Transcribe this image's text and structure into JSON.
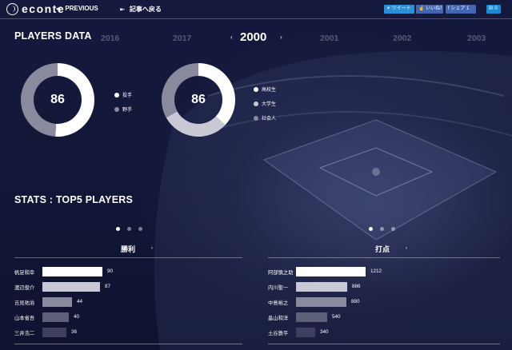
{
  "header": {
    "logo": "econte",
    "previous_label": "PREVIOUS",
    "back_label": "記事へ戻る",
    "share": {
      "tweet": "ツイート",
      "like": "いいね！",
      "fb_share": "シェア 1",
      "hatena": "B! 0"
    }
  },
  "players_data": {
    "title": "PLAYERS DATA",
    "years": [
      "2016",
      "2017",
      "2001",
      "2002",
      "2003"
    ],
    "selected_year": "2000",
    "position_chart": {
      "center_value": "86",
      "legend": [
        {
          "label": "投手",
          "color": "#ffffff",
          "share": 0.51
        },
        {
          "label": "野手",
          "color": "#8a8a9e",
          "share": 0.49
        }
      ]
    },
    "background_chart": {
      "center_value": "86",
      "legend": [
        {
          "label": "高校生",
          "color": "#ffffff",
          "share": 0.37
        },
        {
          "label": "大学生",
          "color": "#c9c9d5",
          "share": 0.3
        },
        {
          "label": "社会人",
          "color": "#8a8a9e",
          "share": 0.33
        }
      ]
    }
  },
  "stats": {
    "title": "STATS : TOP5 PLAYERS",
    "wins": {
      "label": "勝利",
      "max": 100,
      "rows": [
        {
          "name": "帆足和幸",
          "value": 90,
          "color": "#ffffff"
        },
        {
          "name": "渡辺俊介",
          "value": 87,
          "color": "#c9c9d5"
        },
        {
          "name": "吉見祐治",
          "value": 44,
          "color": "#8a8a9e"
        },
        {
          "name": "山本省吾",
          "value": 40,
          "color": "#5e5f78"
        },
        {
          "name": "三井浩二",
          "value": 36,
          "color": "#3f4060"
        }
      ]
    },
    "hits": {
      "label": "打点",
      "max": 1350,
      "rows": [
        {
          "name": "阿部慎之助",
          "value": 1212,
          "color": "#ffffff"
        },
        {
          "name": "内川聖一",
          "value": 886,
          "color": "#c9c9d5"
        },
        {
          "name": "中島裕之",
          "value": 880,
          "color": "#8a8a9e"
        },
        {
          "name": "畠山和洋",
          "value": 540,
          "color": "#5e5f78"
        },
        {
          "name": "土谷鉄平",
          "value": 340,
          "color": "#3f4060"
        }
      ]
    }
  }
}
